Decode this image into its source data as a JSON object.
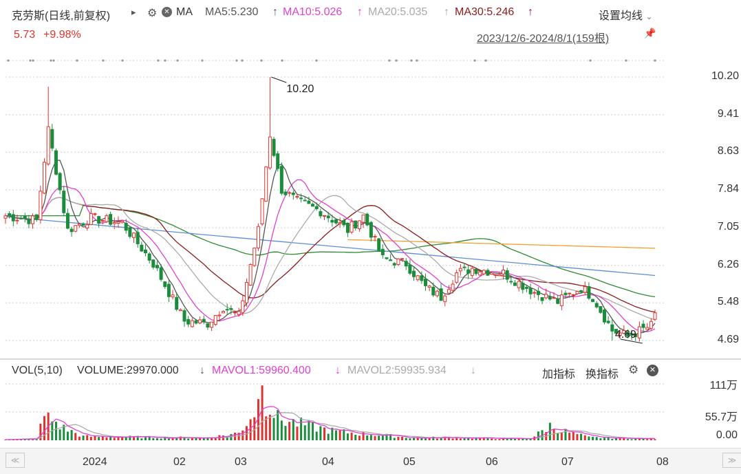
{
  "header": {
    "stock_title": "克劳斯(日线,前复权)",
    "arrow_glyph": "▸",
    "ma_label": "MA",
    "ma5": "MA5:5.230",
    "ma10": "MA10:5.026",
    "ma20": "MA20:5.035",
    "ma30": "MA30:5.246",
    "up_glyph": "↑",
    "settings": "设置均线",
    "price": "5.73",
    "change": "+9.98%",
    "range": "2023/12/6-2024/8/1(159根)"
  },
  "volume_header": {
    "vol_label": "VOL(5,10)",
    "volume": "VOLUME:29970.000",
    "mavol1": "MAVOL1:59960.400",
    "mavol2": "MAVOL2:59935.934",
    "down_glyph": "↓",
    "add_indicator": "加指标",
    "switch_indicator": "换指标"
  },
  "colors": {
    "up": "#e0322d",
    "down": "#1a8c3c",
    "ma5": "#555555",
    "ma10": "#e040d0",
    "ma20": "#aaaaaa",
    "ma30": "#8b1a1a",
    "ma60": "#2e8b2e",
    "ma120": "#5b8fd6",
    "ma250": "#f0a030",
    "grid": "#cccccc"
  },
  "chart_data": {
    "type": "candlestick",
    "title": "克劳斯(日线,前复权)",
    "y_ticks": [
      "10.20",
      "9.41",
      "8.63",
      "7.84",
      "7.05",
      "6.26",
      "5.48",
      "4.69"
    ],
    "y_range": [
      4.69,
      10.2
    ],
    "x_ticks": [
      "2024",
      "02",
      "03",
      "04",
      "05",
      "06",
      "07",
      "08"
    ],
    "annotations": {
      "high": "10.20",
      "low": "4.69"
    },
    "ma_last": {
      "MA5": 5.23,
      "MA10": 5.026,
      "MA20": 5.035,
      "MA30": 5.246
    },
    "close_anchors": [
      [
        0,
        7.3
      ],
      [
        8,
        7.2
      ],
      [
        11,
        9.1
      ],
      [
        16,
        7.0
      ],
      [
        22,
        7.25
      ],
      [
        30,
        7.15
      ],
      [
        38,
        6.3
      ],
      [
        46,
        5.1
      ],
      [
        52,
        5.05
      ],
      [
        56,
        5.4
      ],
      [
        60,
        5.2
      ],
      [
        65,
        7.0
      ],
      [
        68,
        9.0
      ],
      [
        71,
        7.85
      ],
      [
        75,
        7.6
      ],
      [
        81,
        7.4
      ],
      [
        88,
        7.0
      ],
      [
        92,
        7.3
      ],
      [
        97,
        6.4
      ],
      [
        103,
        6.3
      ],
      [
        108,
        5.8
      ],
      [
        112,
        5.6
      ],
      [
        116,
        6.1
      ],
      [
        120,
        6.2
      ],
      [
        128,
        6.1
      ],
      [
        136,
        5.7
      ],
      [
        142,
        5.5
      ],
      [
        148,
        5.8
      ],
      [
        151,
        5.6
      ],
      [
        156,
        4.9
      ],
      [
        160,
        4.78
      ],
      [
        166,
        5.0
      ],
      [
        167,
        5.23
      ]
    ],
    "volume_axis": [
      "111万",
      "55.7万",
      "0.00"
    ],
    "volume_anchors": [
      [
        0,
        2
      ],
      [
        8,
        3
      ],
      [
        10,
        50
      ],
      [
        12,
        42
      ],
      [
        15,
        25
      ],
      [
        20,
        8
      ],
      [
        30,
        7
      ],
      [
        40,
        6
      ],
      [
        52,
        5
      ],
      [
        60,
        15
      ],
      [
        64,
        60
      ],
      [
        66,
        95
      ],
      [
        70,
        45
      ],
      [
        75,
        35
      ],
      [
        85,
        18
      ],
      [
        95,
        12
      ],
      [
        105,
        5
      ],
      [
        115,
        6
      ],
      [
        125,
        4
      ],
      [
        135,
        3
      ],
      [
        140,
        30
      ],
      [
        144,
        18
      ],
      [
        150,
        6
      ],
      [
        160,
        4
      ],
      [
        167,
        3
      ]
    ]
  },
  "scroll": {
    "left": "≪",
    "right": "≫"
  },
  "icons": {
    "gear": "⚙",
    "close": "✕",
    "pin": "📌",
    "chevron": "⌄"
  }
}
